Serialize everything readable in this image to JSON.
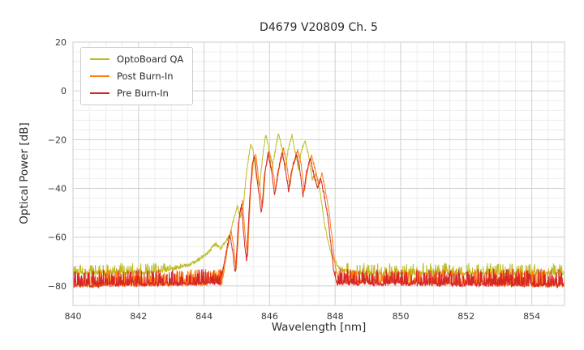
{
  "chart_data": {
    "type": "line",
    "title": "D4679 V20809 Ch. 5",
    "xlabel": "Wavelength [nm]",
    "ylabel": "Optical Power [dB]",
    "xlim": [
      840,
      855
    ],
    "ylim": [
      -88,
      20
    ],
    "xticks": [
      840,
      842,
      844,
      846,
      848,
      850,
      852,
      854
    ],
    "yticks": [
      20,
      0,
      -20,
      -40,
      -60,
      -80
    ],
    "grid": {
      "major": true,
      "minor": true,
      "minor_x_step": 0.5,
      "minor_y_step": 4
    },
    "legend_position": "upper left",
    "series": [
      {
        "name": "OptoBoard QA",
        "color": "#bcbd22",
        "noise_top": -70.5,
        "noise_bottom": -84,
        "envelope": [
          [
            840,
            -75
          ],
          [
            842.5,
            -74.5
          ],
          [
            843.2,
            -72.5
          ],
          [
            843.6,
            -71
          ],
          [
            843.9,
            -68.5
          ],
          [
            844.15,
            -66
          ],
          [
            844.35,
            -62.5
          ],
          [
            844.5,
            -65
          ],
          [
            844.65,
            -62
          ],
          [
            844.8,
            -59
          ],
          [
            844.95,
            -50
          ],
          [
            845.02,
            -47
          ],
          [
            845.1,
            -52
          ],
          [
            845.2,
            -47
          ],
          [
            845.3,
            -33
          ],
          [
            845.42,
            -21.5
          ],
          [
            845.5,
            -24
          ],
          [
            845.6,
            -36
          ],
          [
            845.7,
            -39
          ],
          [
            845.8,
            -25
          ],
          [
            845.88,
            -18.5
          ],
          [
            845.96,
            -22
          ],
          [
            846.05,
            -33
          ],
          [
            846.15,
            -26
          ],
          [
            846.27,
            -17.5
          ],
          [
            846.38,
            -24
          ],
          [
            846.47,
            -32
          ],
          [
            846.57,
            -24
          ],
          [
            846.68,
            -18
          ],
          [
            846.78,
            -25
          ],
          [
            846.88,
            -32
          ],
          [
            846.98,
            -24
          ],
          [
            847.08,
            -20
          ],
          [
            847.18,
            -26
          ],
          [
            847.3,
            -36
          ],
          [
            847.42,
            -34
          ],
          [
            847.55,
            -42
          ],
          [
            847.68,
            -55
          ],
          [
            847.8,
            -63
          ],
          [
            847.95,
            -69
          ],
          [
            848.15,
            -73
          ],
          [
            848.5,
            -75
          ],
          [
            855,
            -75
          ]
        ]
      },
      {
        "name": "Post Burn-In",
        "color": "#ff7f0e",
        "noise_top": -73,
        "noise_bottom": -88,
        "envelope": [
          [
            840,
            -80
          ],
          [
            844.55,
            -79
          ],
          [
            844.7,
            -66
          ],
          [
            844.82,
            -57
          ],
          [
            844.9,
            -63
          ],
          [
            844.98,
            -74
          ],
          [
            845.08,
            -52
          ],
          [
            845.17,
            -45
          ],
          [
            845.26,
            -60
          ],
          [
            845.33,
            -68
          ],
          [
            845.42,
            -40
          ],
          [
            845.52,
            -27
          ],
          [
            845.58,
            -25.5
          ],
          [
            845.68,
            -38
          ],
          [
            845.78,
            -48
          ],
          [
            845.88,
            -32
          ],
          [
            845.98,
            -24
          ],
          [
            846.08,
            -30
          ],
          [
            846.18,
            -41
          ],
          [
            846.28,
            -32
          ],
          [
            846.42,
            -23.5
          ],
          [
            846.52,
            -30
          ],
          [
            846.62,
            -39
          ],
          [
            846.72,
            -30
          ],
          [
            846.86,
            -24.5
          ],
          [
            846.96,
            -30
          ],
          [
            847.06,
            -41
          ],
          [
            847.16,
            -32
          ],
          [
            847.28,
            -26
          ],
          [
            847.4,
            -33
          ],
          [
            847.5,
            -38
          ],
          [
            847.6,
            -34
          ],
          [
            847.72,
            -42
          ],
          [
            847.82,
            -50
          ],
          [
            847.92,
            -62
          ],
          [
            848.0,
            -72
          ],
          [
            848.1,
            -78
          ],
          [
            855,
            -80
          ]
        ]
      },
      {
        "name": "Pre Burn-In",
        "color": "#d62728",
        "noise_top": -73,
        "noise_bottom": -88,
        "envelope": [
          [
            840,
            -80
          ],
          [
            844.5,
            -79
          ],
          [
            844.65,
            -68
          ],
          [
            844.78,
            -59
          ],
          [
            844.87,
            -65
          ],
          [
            844.95,
            -76
          ],
          [
            845.05,
            -54
          ],
          [
            845.14,
            -47
          ],
          [
            845.23,
            -62
          ],
          [
            845.3,
            -70
          ],
          [
            845.4,
            -42
          ],
          [
            845.48,
            -29
          ],
          [
            845.55,
            -27
          ],
          [
            845.65,
            -40
          ],
          [
            845.75,
            -50
          ],
          [
            845.85,
            -34
          ],
          [
            845.95,
            -25.5
          ],
          [
            846.05,
            -32
          ],
          [
            846.15,
            -43
          ],
          [
            846.25,
            -34
          ],
          [
            846.38,
            -25
          ],
          [
            846.48,
            -32
          ],
          [
            846.58,
            -41
          ],
          [
            846.68,
            -32
          ],
          [
            846.82,
            -26
          ],
          [
            846.92,
            -32
          ],
          [
            847.02,
            -43
          ],
          [
            847.12,
            -34
          ],
          [
            847.24,
            -27.5
          ],
          [
            847.36,
            -35
          ],
          [
            847.46,
            -40
          ],
          [
            847.56,
            -36
          ],
          [
            847.68,
            -44
          ],
          [
            847.78,
            -52
          ],
          [
            847.88,
            -64
          ],
          [
            847.96,
            -74
          ],
          [
            848.06,
            -79
          ],
          [
            855,
            -80
          ]
        ]
      }
    ]
  }
}
